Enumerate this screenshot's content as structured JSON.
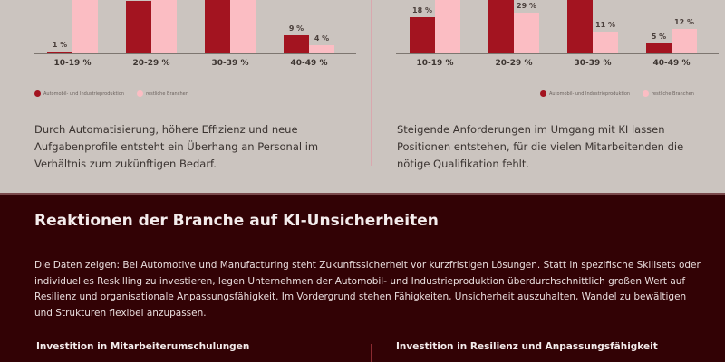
{
  "colors": {
    "automotive": "#a31420",
    "other": "#fbbdc3",
    "background_top": "#cbc4bf",
    "background_bottom": "#320205"
  },
  "chart_data": [
    {
      "type": "bar",
      "title": "",
      "categories": [
        "10-19 %",
        "20-29 %",
        "30-39 %",
        "40-49 %"
      ],
      "series": [
        {
          "name": "Automobil- und Industrieproduktion",
          "values": [
            1,
            null,
            null,
            9
          ]
        },
        {
          "name": "restliche Branchen",
          "values": [
            null,
            null,
            null,
            4
          ]
        }
      ],
      "value_labels": {
        "Automobil- und Industrieproduktion": [
          "1 %",
          "",
          "",
          "9 %"
        ],
        "restliche Branchen": [
          "",
          "",
          "",
          "4 %"
        ]
      },
      "note": "Top of chart cropped; bars for 20-29 % and 30-39 % and pink 10-19 % extend beyond visible area",
      "xlabel": "",
      "ylabel": "",
      "legend_position": "bottom-left",
      "grid": false
    },
    {
      "type": "bar",
      "title": "",
      "categories": [
        "10-19 %",
        "20-29 %",
        "30-39 %",
        "40-49 %"
      ],
      "series": [
        {
          "name": "Automobil- und Industrieproduktion",
          "values": [
            18,
            null,
            null,
            5
          ]
        },
        {
          "name": "restliche Branchen",
          "values": [
            null,
            29,
            11,
            12
          ]
        }
      ],
      "value_labels": {
        "Automobil- und Industrieproduktion": [
          "18 %",
          "",
          "",
          "5 %"
        ],
        "restliche Branchen": [
          "",
          "29 %",
          "11 %",
          "12 %"
        ]
      },
      "note": "Top of chart cropped; some bars extend beyond visible area",
      "xlabel": "",
      "ylabel": "",
      "legend_position": "bottom-right",
      "grid": false
    }
  ],
  "left_chart": {
    "groups": [
      {
        "cat": "10-19 %",
        "dark_h": 2,
        "light_h": 60,
        "dark_label": "1 %",
        "light_label": ""
      },
      {
        "cat": "20-29 %",
        "dark_h": 58,
        "light_h": 62,
        "dark_label": "",
        "light_label": ""
      },
      {
        "cat": "30-39 %",
        "dark_h": 62,
        "light_h": 62,
        "dark_label": "",
        "light_label": ""
      },
      {
        "cat": "40-49 %",
        "dark_h": 20,
        "light_h": 9,
        "dark_label": "9 %",
        "light_label": "4 %"
      }
    ],
    "legend": {
      "automotive": "Automobil- und Industrieproduktion",
      "other": "restliche Branchen"
    }
  },
  "right_chart": {
    "groups": [
      {
        "cat": "10-19 %",
        "dark_h": 40,
        "light_h": 62,
        "dark_label": "18 %",
        "light_label": ""
      },
      {
        "cat": "20-29 %",
        "dark_h": 62,
        "light_h": 45,
        "dark_label": "",
        "light_label": "29 %"
      },
      {
        "cat": "30-39 %",
        "dark_h": 62,
        "light_h": 24,
        "dark_label": "",
        "light_label": "11 %"
      },
      {
        "cat": "40-49 %",
        "dark_h": 11,
        "light_h": 27,
        "dark_label": "5 %",
        "light_label": "12 %"
      }
    ],
    "legend": {
      "automotive": "Automobil- und Industrieproduktion",
      "other": "restliche Branchen"
    }
  },
  "descriptions": {
    "left": "Durch Automatisierung, höhere Effizienz und neue Aufgabenprofile entsteht ein Überhang an Personal im Verhältnis zum zukünftigen Bedarf.",
    "right": "Steigende Anforderungen im Umgang mit KI lassen Positionen entstehen, für die vielen Mitarbeitenden die nötige Qualifikation fehlt."
  },
  "section": {
    "title": "Reaktionen der Branche auf KI-Unsicherheiten",
    "body": "Die Daten zeigen: Bei Automotive und Manufacturing steht Zukunftssicherheit vor kurzfristigen Lösungen. Statt in spezifische Skillsets oder individuelles Reskilling zu investieren, legen Unternehmen der Automobil- und Industrieproduktion überdurchschnittlich großen Wert auf Resilienz und organisationale Anpassungsfähigkeit. Im Vordergrund stehen Fähigkeiten, Unsicherheit auszuhalten, Wandel zu bewältigen und Strukturen flexibel anzupassen.",
    "sub_left": "Investition in Mitarbeiterumschulungen",
    "sub_right": "Investition in Resilienz und Anpassungsfähigkeit"
  }
}
